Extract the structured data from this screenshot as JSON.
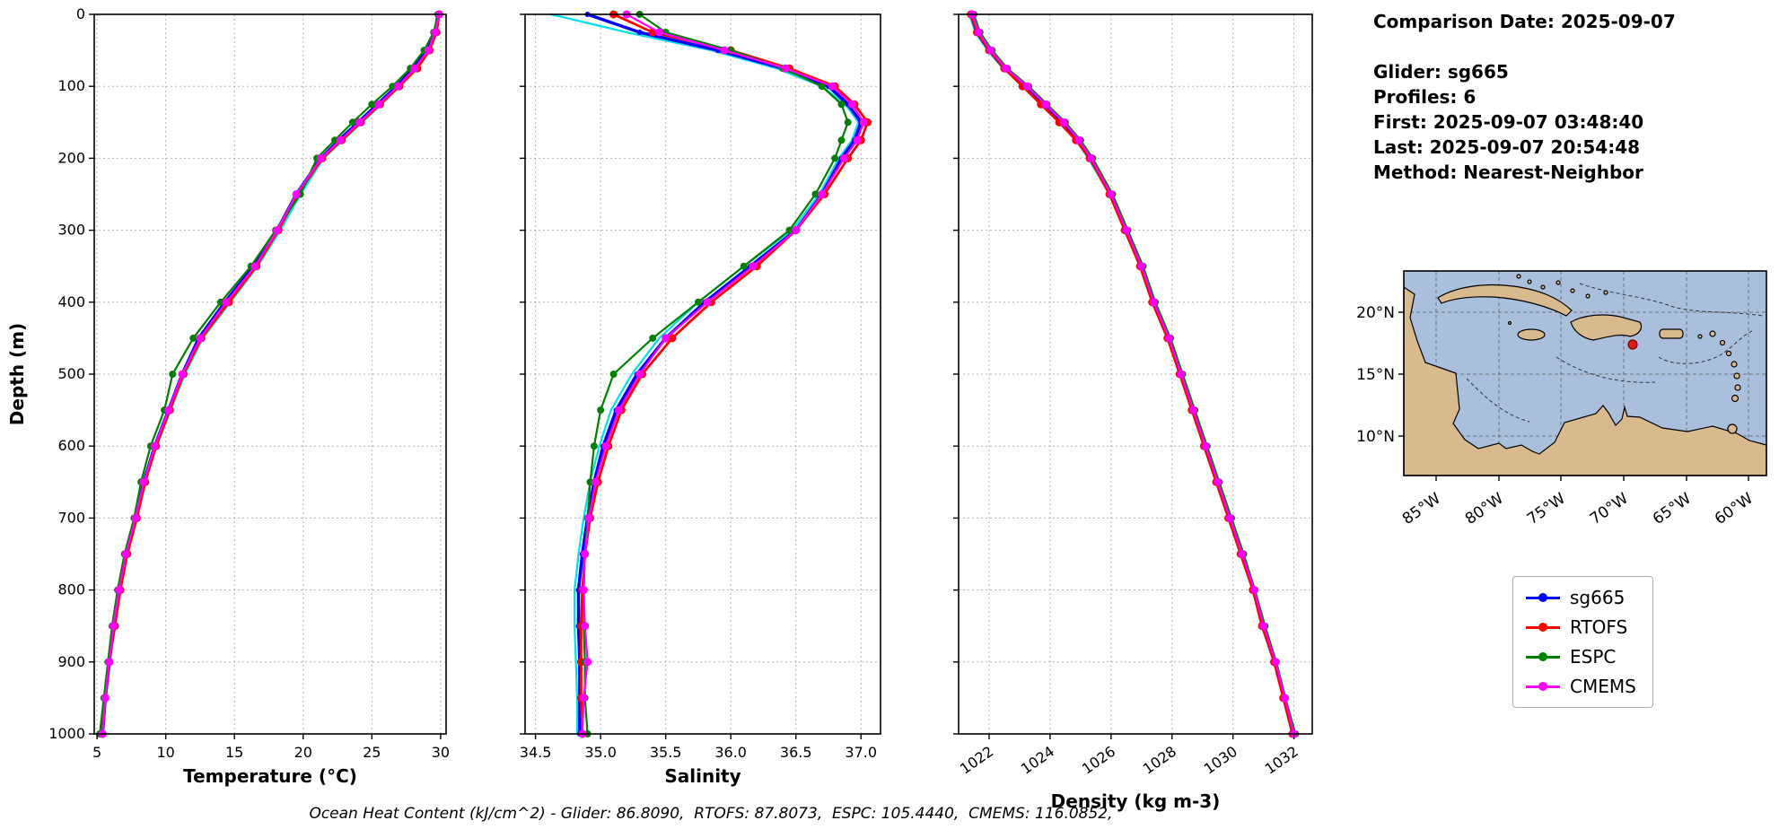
{
  "info_panel": {
    "title": "Comparison Date: 2025-09-07",
    "lines": [
      "Glider: sg665",
      "Profiles: 6",
      "First: 2025-09-07 03:48:40",
      "Last: 2025-09-07 20:54:48",
      "Method: Nearest-Neighbor"
    ]
  },
  "legend": {
    "position": "outside-right",
    "entries": [
      {
        "label": "sg665",
        "color": "#0000ff"
      },
      {
        "label": "RTOFS",
        "color": "#ff0000"
      },
      {
        "label": "ESPC",
        "color": "#008000"
      },
      {
        "label": "CMEMS",
        "color": "#ff00ff"
      }
    ]
  },
  "footer": {
    "ohc_caption": "Ocean Heat Content (kJ/cm^2) - Glider: 86.8090,  RTOFS: 87.8073,  ESPC: 105.4440,  CMEMS: 116.0852,"
  },
  "map": {
    "lat_ticks": [
      "20°N",
      "15°N",
      "10°N"
    ],
    "lon_ticks": [
      "85°W",
      "80°W",
      "75°W",
      "70°W",
      "65°W",
      "60°W"
    ],
    "land_color": "#d9b98e",
    "ocean_color": "#a9bfdc",
    "marker_color": "#d62020"
  },
  "chart_data": [
    {
      "type": "line",
      "name": "temperature",
      "xlabel": "Temperature (°C)",
      "ylabel": "Depth (m)",
      "xlim": [
        4.8,
        30.4
      ],
      "ylim": [
        0,
        1000
      ],
      "grid": true,
      "xticks": {
        "values": [
          5,
          10,
          15,
          20,
          25,
          30
        ],
        "labels": [
          "5",
          "10",
          "15",
          "20",
          "25",
          "30"
        ]
      },
      "yticks": {
        "values": [
          0,
          100,
          200,
          300,
          400,
          500,
          600,
          700,
          800,
          900,
          1000
        ],
        "labels": [
          "0",
          "100",
          "200",
          "300",
          "400",
          "500",
          "600",
          "700",
          "800",
          "900",
          "1000"
        ]
      },
      "depths": [
        0,
        25,
        50,
        75,
        100,
        125,
        150,
        175,
        200,
        250,
        300,
        350,
        400,
        450,
        500,
        550,
        600,
        650,
        700,
        750,
        800,
        850,
        900,
        950,
        1000
      ],
      "series": [
        {
          "name": "sg665-raw-profiles",
          "color": "#00e0ee",
          "lw": 2.2,
          "marker": false,
          "ms": 0,
          "in_legend": false,
          "values": [
            29.9,
            29.7,
            29.15,
            28.2,
            27.0,
            25.7,
            24.3,
            22.9,
            21.5,
            19.8,
            18.35,
            16.7,
            14.7,
            12.7,
            11.4,
            10.35,
            9.35,
            8.5,
            7.9,
            7.2,
            6.7,
            6.25,
            5.95,
            5.65,
            5.45
          ]
        },
        {
          "name": "sg665",
          "color": "#0000ff",
          "lw": 3.5,
          "marker": true,
          "ms": 3,
          "in_legend": true,
          "values": [
            29.8,
            29.6,
            29.0,
            28.0,
            26.8,
            25.4,
            24.0,
            22.6,
            21.3,
            19.5,
            18.1,
            16.4,
            14.3,
            12.4,
            11.2,
            10.2,
            9.2,
            8.4,
            7.8,
            7.1,
            6.6,
            6.2,
            5.9,
            5.6,
            5.4
          ]
        },
        {
          "name": "RTOFS",
          "color": "#ff0000",
          "lw": 2.8,
          "marker": true,
          "ms": 4.5,
          "in_legend": true,
          "values": [
            29.9,
            29.7,
            29.2,
            28.3,
            27.0,
            25.6,
            24.2,
            22.8,
            21.4,
            19.6,
            18.2,
            16.6,
            14.6,
            12.6,
            11.3,
            10.3,
            9.3,
            8.5,
            7.9,
            7.2,
            6.7,
            6.3,
            5.9,
            5.6,
            5.4
          ]
        },
        {
          "name": "ESPC",
          "color": "#008000",
          "lw": 2.2,
          "marker": true,
          "ms": 4,
          "in_legend": true,
          "values": [
            29.8,
            29.5,
            28.8,
            27.8,
            26.5,
            25.0,
            23.6,
            22.3,
            21.0,
            19.8,
            18.0,
            16.2,
            14.0,
            12.0,
            10.5,
            9.9,
            8.9,
            8.2,
            7.7,
            7.0,
            6.5,
            6.1,
            5.8,
            5.5,
            5.2
          ]
        },
        {
          "name": "CMEMS",
          "color": "#ff00ff",
          "lw": 2.2,
          "marker": true,
          "ms": 4.5,
          "in_legend": true,
          "values": [
            29.9,
            29.6,
            29.1,
            28.1,
            26.9,
            25.5,
            24.1,
            22.7,
            21.3,
            19.5,
            18.1,
            16.5,
            14.4,
            12.5,
            11.2,
            10.2,
            9.2,
            8.4,
            7.8,
            7.1,
            6.6,
            6.2,
            5.9,
            5.6,
            5.4
          ]
        }
      ]
    },
    {
      "type": "line",
      "name": "salinity",
      "xlabel": "Salinity",
      "ylabel": "Depth (m)",
      "xlim": [
        34.42,
        37.15
      ],
      "ylim": [
        0,
        1000
      ],
      "grid": true,
      "xticks": {
        "values": [
          34.5,
          35.0,
          35.5,
          36.0,
          36.5,
          37.0
        ],
        "labels": [
          "34.5",
          "35.0",
          "35.5",
          "36.0",
          "36.5",
          "37.0"
        ]
      },
      "yticks": {
        "values": [
          0,
          100,
          200,
          300,
          400,
          500,
          600,
          700,
          800,
          900,
          1000
        ],
        "labels": [
          "0",
          "100",
          "200",
          "300",
          "400",
          "500",
          "600",
          "700",
          "800",
          "900",
          "1000"
        ]
      },
      "depths": [
        0,
        25,
        50,
        75,
        100,
        125,
        150,
        175,
        200,
        250,
        300,
        350,
        400,
        450,
        500,
        550,
        600,
        650,
        700,
        750,
        800,
        850,
        900,
        950,
        1000
      ],
      "series": [
        {
          "name": "sg665-raw-profiles",
          "color": "#00e0ee",
          "lw": 2.2,
          "marker": false,
          "ms": 0,
          "in_legend": false,
          "values": [
            34.62,
            35.2,
            35.85,
            36.35,
            36.7,
            36.88,
            36.98,
            36.93,
            36.83,
            36.68,
            36.47,
            36.1,
            35.75,
            35.45,
            35.24,
            35.08,
            34.99,
            34.92,
            34.87,
            34.83,
            34.8,
            34.8,
            34.81,
            34.82,
            34.82
          ]
        },
        {
          "name": "sg665",
          "color": "#0000ff",
          "lw": 3.5,
          "marker": true,
          "ms": 3,
          "in_legend": true,
          "values": [
            34.9,
            35.3,
            35.9,
            36.4,
            36.75,
            36.9,
            37.0,
            36.95,
            36.85,
            36.7,
            36.5,
            36.15,
            35.8,
            35.5,
            35.28,
            35.12,
            35.02,
            34.95,
            34.9,
            34.86,
            34.83,
            34.83,
            34.84,
            34.84,
            34.84
          ]
        },
        {
          "name": "RTOFS",
          "color": "#ff0000",
          "lw": 2.8,
          "marker": true,
          "ms": 4.5,
          "in_legend": true,
          "values": [
            35.1,
            35.4,
            36.0,
            36.45,
            36.8,
            36.95,
            37.05,
            37.0,
            36.9,
            36.72,
            36.5,
            36.2,
            35.85,
            35.55,
            35.32,
            35.16,
            35.06,
            34.98,
            34.92,
            34.88,
            34.86,
            34.85,
            34.85,
            34.85,
            34.86
          ]
        },
        {
          "name": "ESPC",
          "color": "#008000",
          "lw": 2.2,
          "marker": true,
          "ms": 4,
          "in_legend": true,
          "values": [
            35.3,
            35.5,
            36.0,
            36.4,
            36.7,
            36.85,
            36.9,
            36.85,
            36.8,
            36.65,
            36.45,
            36.1,
            35.75,
            35.4,
            35.1,
            35.0,
            34.95,
            34.92,
            34.9,
            34.88,
            34.87,
            34.87,
            34.88,
            34.88,
            34.9
          ]
        },
        {
          "name": "CMEMS",
          "color": "#ff00ff",
          "lw": 2.2,
          "marker": true,
          "ms": 4.5,
          "in_legend": true,
          "values": [
            35.2,
            35.45,
            35.95,
            36.42,
            36.78,
            36.93,
            37.02,
            36.97,
            36.87,
            36.7,
            36.5,
            36.17,
            35.82,
            35.5,
            35.3,
            35.14,
            35.04,
            34.96,
            34.91,
            34.88,
            34.87,
            34.88,
            34.9,
            34.87,
            34.86
          ]
        }
      ]
    },
    {
      "type": "line",
      "name": "density",
      "xlabel": "Density (kg m-3)",
      "ylabel": "Depth (m)",
      "xlim": [
        1021.0,
        1032.6
      ],
      "ylim": [
        0,
        1000
      ],
      "grid": true,
      "xtick_rotation": 35,
      "xticks": {
        "values": [
          1022,
          1024,
          1026,
          1028,
          1030,
          1032
        ],
        "labels": [
          "1022",
          "1024",
          "1026",
          "1028",
          "1030",
          "1032"
        ]
      },
      "yticks": {
        "values": [
          0,
          100,
          200,
          300,
          400,
          500,
          600,
          700,
          800,
          900,
          1000
        ],
        "labels": [
          "0",
          "100",
          "200",
          "300",
          "400",
          "500",
          "600",
          "700",
          "800",
          "900",
          "1000"
        ]
      },
      "depths": [
        0,
        25,
        50,
        75,
        100,
        125,
        150,
        175,
        200,
        250,
        300,
        350,
        400,
        450,
        500,
        550,
        600,
        650,
        700,
        750,
        800,
        850,
        900,
        950,
        1000
      ],
      "series": [
        {
          "name": "sg665-raw-profiles",
          "color": "#00e0ee",
          "lw": 2.2,
          "marker": false,
          "ms": 0,
          "in_legend": false,
          "values": [
            1021.35,
            1021.55,
            1021.95,
            1022.45,
            1023.15,
            1023.75,
            1024.35,
            1024.85,
            1025.25,
            1025.95,
            1026.45,
            1026.95,
            1027.35,
            1027.85,
            1028.25,
            1028.65,
            1029.05,
            1029.45,
            1029.85,
            1030.25,
            1030.65,
            1030.95,
            1031.35,
            1031.65,
            1031.95
          ]
        },
        {
          "name": "sg665",
          "color": "#0000ff",
          "lw": 3.5,
          "marker": true,
          "ms": 3,
          "in_legend": true,
          "values": [
            1021.4,
            1021.6,
            1022.0,
            1022.5,
            1023.2,
            1023.8,
            1024.4,
            1024.9,
            1025.3,
            1026.0,
            1026.5,
            1027.0,
            1027.4,
            1027.9,
            1028.3,
            1028.7,
            1029.1,
            1029.5,
            1029.9,
            1030.3,
            1030.7,
            1031.0,
            1031.4,
            1031.7,
            1032.0
          ]
        },
        {
          "name": "RTOFS",
          "color": "#ff0000",
          "lw": 2.8,
          "marker": true,
          "ms": 4.5,
          "in_legend": true,
          "values": [
            1021.4,
            1021.6,
            1022.0,
            1022.5,
            1023.1,
            1023.7,
            1024.3,
            1024.85,
            1025.3,
            1025.95,
            1026.45,
            1026.95,
            1027.35,
            1027.85,
            1028.25,
            1028.65,
            1029.05,
            1029.45,
            1029.85,
            1030.25,
            1030.65,
            1030.95,
            1031.35,
            1031.65,
            1031.95
          ]
        },
        {
          "name": "ESPC",
          "color": "#008000",
          "lw": 2.2,
          "marker": true,
          "ms": 4,
          "in_legend": true,
          "values": [
            1021.5,
            1021.7,
            1022.1,
            1022.6,
            1023.3,
            1023.9,
            1024.5,
            1025.0,
            1025.4,
            1026.05,
            1026.55,
            1027.05,
            1027.45,
            1027.95,
            1028.35,
            1028.75,
            1029.15,
            1029.55,
            1029.95,
            1030.35,
            1030.72,
            1031.05,
            1031.42,
            1031.72,
            1032.05
          ]
        },
        {
          "name": "CMEMS",
          "color": "#ff00ff",
          "lw": 2.2,
          "marker": true,
          "ms": 4.5,
          "in_legend": true,
          "values": [
            1021.45,
            1021.65,
            1022.05,
            1022.55,
            1023.25,
            1023.85,
            1024.45,
            1024.95,
            1025.35,
            1026.0,
            1026.5,
            1027.0,
            1027.4,
            1027.9,
            1028.3,
            1028.7,
            1029.1,
            1029.5,
            1029.9,
            1030.3,
            1030.7,
            1031.0,
            1031.4,
            1031.7,
            1032.0
          ]
        }
      ]
    }
  ]
}
